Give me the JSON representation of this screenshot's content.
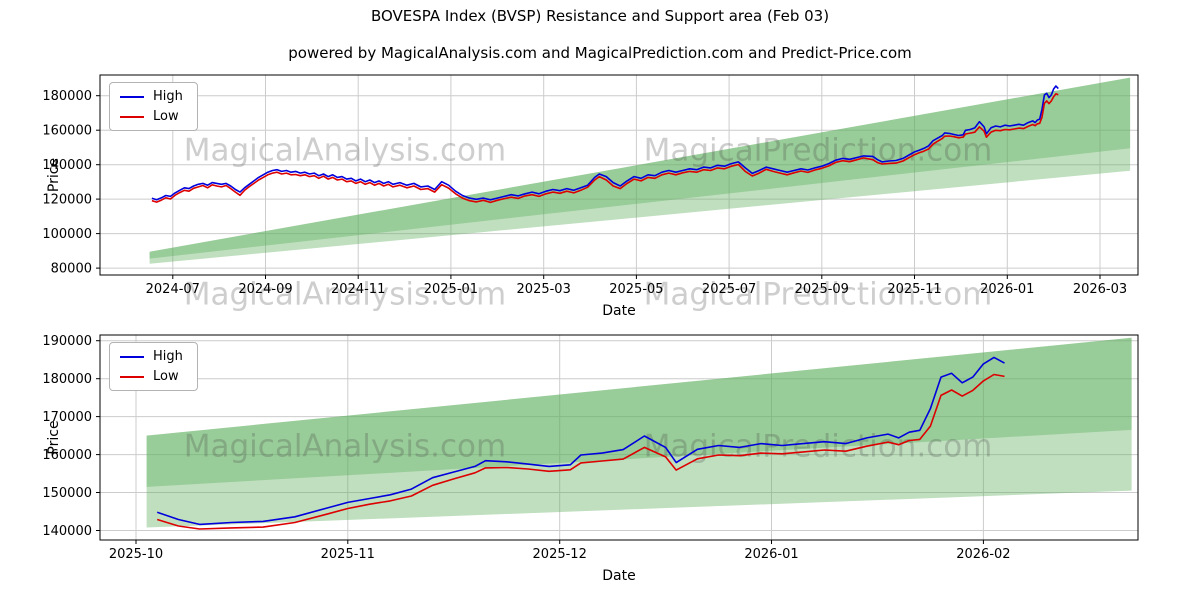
{
  "title": "BOVESPA Index (BVSP) Resistance and Support area (Feb 03)",
  "subtitle": "powered by MagicalAnalysis.com and MagicalPrediction.com and Predict-Price.com",
  "watermarks": {
    "left": "MagicalAnalysis.com",
    "right": "MagicalPrediction.com"
  },
  "legend": {
    "high": "High",
    "low": "Low"
  },
  "colors": {
    "high": "#0000dd",
    "low": "#dd0000",
    "band": "rgba(96,176,96,0.40)",
    "grid": "#cccccc",
    "frame": "#000000",
    "watermark": "rgba(80,80,80,0.28)"
  },
  "chart_data": [
    {
      "type": "line",
      "title": "",
      "xlabel": "Date",
      "ylabel": "Price",
      "x_note": "x = months since 2024-01-01 (6 = 2024-07)",
      "x_range": [
        4.43,
        26.82
      ],
      "y_range": [
        76000,
        192000
      ],
      "grid": true,
      "legend_position": "upper left",
      "x_ticks": [
        {
          "v": 6,
          "label": "2024-07"
        },
        {
          "v": 8,
          "label": "2024-09"
        },
        {
          "v": 10,
          "label": "2024-11"
        },
        {
          "v": 12,
          "label": "2025-01"
        },
        {
          "v": 14,
          "label": "2025-03"
        },
        {
          "v": 16,
          "label": "2025-05"
        },
        {
          "v": 18,
          "label": "2025-07"
        },
        {
          "v": 20,
          "label": "2025-09"
        },
        {
          "v": 22,
          "label": "2025-11"
        },
        {
          "v": 24,
          "label": "2026-01"
        },
        {
          "v": 26,
          "label": "2026-03"
        }
      ],
      "y_ticks": [
        80000,
        100000,
        120000,
        140000,
        160000,
        180000
      ],
      "x": [
        5.55,
        5.65,
        5.75,
        5.85,
        5.95,
        6.05,
        6.15,
        6.25,
        6.35,
        6.45,
        6.55,
        6.65,
        6.75,
        6.85,
        6.95,
        7.05,
        7.15,
        7.25,
        7.35,
        7.45,
        7.55,
        7.65,
        7.75,
        7.85,
        7.95,
        8.05,
        8.15,
        8.25,
        8.35,
        8.45,
        8.55,
        8.65,
        8.75,
        8.85,
        8.95,
        9.05,
        9.15,
        9.25,
        9.35,
        9.45,
        9.55,
        9.65,
        9.75,
        9.85,
        9.95,
        10.05,
        10.15,
        10.25,
        10.35,
        10.45,
        10.55,
        10.65,
        10.75,
        10.9,
        11.05,
        11.2,
        11.35,
        11.5,
        11.65,
        11.8,
        11.95,
        12.1,
        12.25,
        12.4,
        12.55,
        12.7,
        12.85,
        13.0,
        13.15,
        13.3,
        13.45,
        13.6,
        13.75,
        13.9,
        14.05,
        14.2,
        14.35,
        14.5,
        14.65,
        14.8,
        14.95,
        15.1,
        15.2,
        15.35,
        15.5,
        15.65,
        15.8,
        15.95,
        16.1,
        16.25,
        16.4,
        16.55,
        16.7,
        16.85,
        17.0,
        17.15,
        17.3,
        17.45,
        17.6,
        17.75,
        17.9,
        18.05,
        18.2,
        18.35,
        18.5,
        18.65,
        18.8,
        18.95,
        19.1,
        19.25,
        19.4,
        19.55,
        19.7,
        19.85,
        20.0,
        20.15,
        20.3,
        20.45,
        20.6,
        20.75,
        20.9,
        21.1,
        21.2,
        21.3,
        21.45,
        21.6,
        21.75,
        21.9,
        22.0,
        22.1,
        22.2,
        22.3,
        22.4,
        22.5,
        22.6,
        22.65,
        22.75,
        22.85,
        22.95,
        23.05,
        23.1,
        23.2,
        23.3,
        23.4,
        23.5,
        23.55,
        23.65,
        23.75,
        23.85,
        23.95,
        24.05,
        24.15,
        24.25,
        24.35,
        24.45,
        24.55,
        24.6,
        24.65,
        24.7,
        24.75,
        24.8,
        24.85,
        24.9,
        24.95,
        25.0,
        25.05,
        25.1
      ],
      "series": [
        {
          "name": "High",
          "color": "#0000dd",
          "values": [
            120500,
            119600,
            120700,
            122100,
            121600,
            123600,
            125100,
            126600,
            126100,
            127600,
            128600,
            129100,
            128100,
            129600,
            129100,
            128600,
            129100,
            127600,
            125600,
            124100,
            126600,
            128600,
            130600,
            132600,
            134100,
            135600,
            136600,
            137100,
            136100,
            136600,
            135600,
            136100,
            135100,
            135600,
            134600,
            135100,
            133600,
            134600,
            133100,
            134100,
            132600,
            133100,
            131600,
            132100,
            130600,
            131600,
            130100,
            131100,
            129600,
            130600,
            129100,
            130100,
            128600,
            129600,
            128100,
            129100,
            127100,
            127600,
            125600,
            130100,
            128100,
            124600,
            122100,
            120600,
            119900,
            120600,
            119600,
            120600,
            121600,
            122600,
            121900,
            123100,
            124100,
            123100,
            124600,
            125600,
            124900,
            126100,
            125100,
            126600,
            128100,
            132600,
            134600,
            133100,
            129600,
            127600,
            130600,
            133100,
            132100,
            134100,
            133600,
            135600,
            136600,
            135600,
            136600,
            137600,
            137100,
            138600,
            138100,
            139600,
            139100,
            140600,
            141600,
            138100,
            134900,
            136600,
            138600,
            137600,
            136600,
            135600,
            136600,
            137600,
            136900,
            138100,
            139100,
            140600,
            142600,
            143600,
            143100,
            144100,
            145100,
            144800,
            142900,
            141600,
            142100,
            142400,
            143600,
            145900,
            147400,
            148400,
            149400,
            150900,
            153900,
            155400,
            156900,
            158400,
            158100,
            157500,
            156900,
            157300,
            159900,
            160400,
            161300,
            164900,
            161900,
            157900,
            161400,
            162400,
            161900,
            162900,
            162400,
            162900,
            163400,
            162900,
            164400,
            165400,
            164400,
            165900,
            166400,
            172100,
            180400,
            181400,
            178900,
            180400,
            183900,
            185600,
            184100
          ]
        },
        {
          "name": "Low",
          "color": "#dd0000",
          "values": [
            119100,
            118300,
            119400,
            120800,
            120100,
            122300,
            123800,
            125100,
            124600,
            126300,
            127100,
            127900,
            126600,
            128300,
            127600,
            127100,
            127900,
            126100,
            124100,
            122200,
            125100,
            127300,
            129100,
            131100,
            132600,
            134100,
            135100,
            135600,
            134600,
            135100,
            134100,
            134300,
            133600,
            134100,
            133100,
            133600,
            132100,
            133300,
            131600,
            132600,
            131100,
            131600,
            130100,
            130600,
            129100,
            130100,
            128600,
            129600,
            128100,
            129100,
            127600,
            128600,
            127100,
            128100,
            126600,
            127600,
            125600,
            126100,
            124100,
            128400,
            126400,
            123100,
            120600,
            119100,
            118400,
            119300,
            118100,
            119300,
            120300,
            121100,
            120400,
            121900,
            122600,
            121600,
            123100,
            124100,
            123400,
            124600,
            123600,
            125100,
            126900,
            131100,
            133100,
            131100,
            127600,
            126100,
            129100,
            131600,
            130600,
            132600,
            132100,
            134100,
            135100,
            134100,
            135300,
            136100,
            135600,
            137100,
            136600,
            138100,
            137600,
            139100,
            140100,
            136100,
            133400,
            135100,
            137300,
            136100,
            135100,
            134100,
            135300,
            136300,
            135500,
            136900,
            137900,
            139300,
            141300,
            142300,
            141700,
            142800,
            143900,
            142900,
            141200,
            140400,
            140700,
            140900,
            142100,
            144300,
            145800,
            146900,
            147800,
            149100,
            151900,
            153600,
            155200,
            156500,
            156600,
            156200,
            155600,
            156000,
            157800,
            158300,
            158800,
            161900,
            159400,
            155900,
            158900,
            159900,
            159700,
            160400,
            160200,
            160700,
            161200,
            160900,
            162200,
            163300,
            162600,
            163700,
            164000,
            167500,
            175600,
            177000,
            175400,
            176900,
            179400,
            181100,
            180600
          ]
        }
      ],
      "support_bands": [
        [
          [
            5.5,
            82500
          ],
          [
            26.65,
            136500
          ],
          [
            26.65,
            190500
          ],
          [
            5.5,
            89500
          ]
        ],
        [
          [
            5.5,
            85500
          ],
          [
            26.65,
            149500
          ],
          [
            26.65,
            190500
          ],
          [
            5.5,
            89500
          ]
        ]
      ]
    },
    {
      "type": "line",
      "title": "",
      "xlabel": "Date",
      "ylabel": "Price",
      "x_note": "x = months since 2024-01-01 (21 = 2025-10)",
      "x_range": [
        20.83,
        25.73
      ],
      "y_range": [
        137500,
        191500
      ],
      "grid": true,
      "legend_position": "upper left",
      "x_ticks": [
        {
          "v": 21,
          "label": "2025-10"
        },
        {
          "v": 22,
          "label": "2025-11"
        },
        {
          "v": 23,
          "label": "2025-12"
        },
        {
          "v": 24,
          "label": "2026-01"
        },
        {
          "v": 25,
          "label": "2026-02"
        }
      ],
      "y_ticks": [
        140000,
        150000,
        160000,
        170000,
        180000,
        190000
      ],
      "x": [
        21.1,
        21.2,
        21.3,
        21.45,
        21.6,
        21.75,
        21.9,
        22.0,
        22.1,
        22.2,
        22.3,
        22.4,
        22.5,
        22.6,
        22.65,
        22.75,
        22.85,
        22.95,
        23.05,
        23.1,
        23.2,
        23.3,
        23.4,
        23.5,
        23.55,
        23.65,
        23.75,
        23.85,
        23.95,
        24.05,
        24.15,
        24.25,
        24.35,
        24.45,
        24.55,
        24.6,
        24.65,
        24.7,
        24.75,
        24.8,
        24.85,
        24.9,
        24.95,
        25.0,
        25.05,
        25.1
      ],
      "series": [
        {
          "name": "High",
          "color": "#0000dd",
          "values": [
            144800,
            142900,
            141600,
            142100,
            142400,
            143600,
            145900,
            147400,
            148400,
            149400,
            150900,
            153900,
            155400,
            156900,
            158400,
            158100,
            157500,
            156900,
            157300,
            159900,
            160400,
            161300,
            164900,
            161900,
            157900,
            161400,
            162400,
            161900,
            162900,
            162400,
            162900,
            163400,
            162900,
            164400,
            165400,
            164400,
            165900,
            166400,
            172100,
            180400,
            181400,
            178900,
            180400,
            183900,
            185600,
            184100
          ]
        },
        {
          "name": "Low",
          "color": "#dd0000",
          "values": [
            142900,
            141200,
            140400,
            140700,
            140900,
            142100,
            144300,
            145800,
            146900,
            147800,
            149100,
            151900,
            153600,
            155200,
            156500,
            156600,
            156200,
            155600,
            156000,
            157800,
            158300,
            158800,
            161900,
            159400,
            155900,
            158900,
            159900,
            159700,
            160400,
            160200,
            160700,
            161200,
            160900,
            162200,
            163300,
            162600,
            163700,
            164000,
            167500,
            175600,
            177000,
            175400,
            176900,
            179400,
            181100,
            180600
          ]
        }
      ],
      "support_bands": [
        [
          [
            21.05,
            140800
          ],
          [
            25.7,
            150500
          ],
          [
            25.7,
            190800
          ],
          [
            21.05,
            165000
          ]
        ],
        [
          [
            21.05,
            151500
          ],
          [
            25.7,
            166500
          ],
          [
            25.7,
            190800
          ],
          [
            21.05,
            165000
          ]
        ]
      ]
    }
  ]
}
